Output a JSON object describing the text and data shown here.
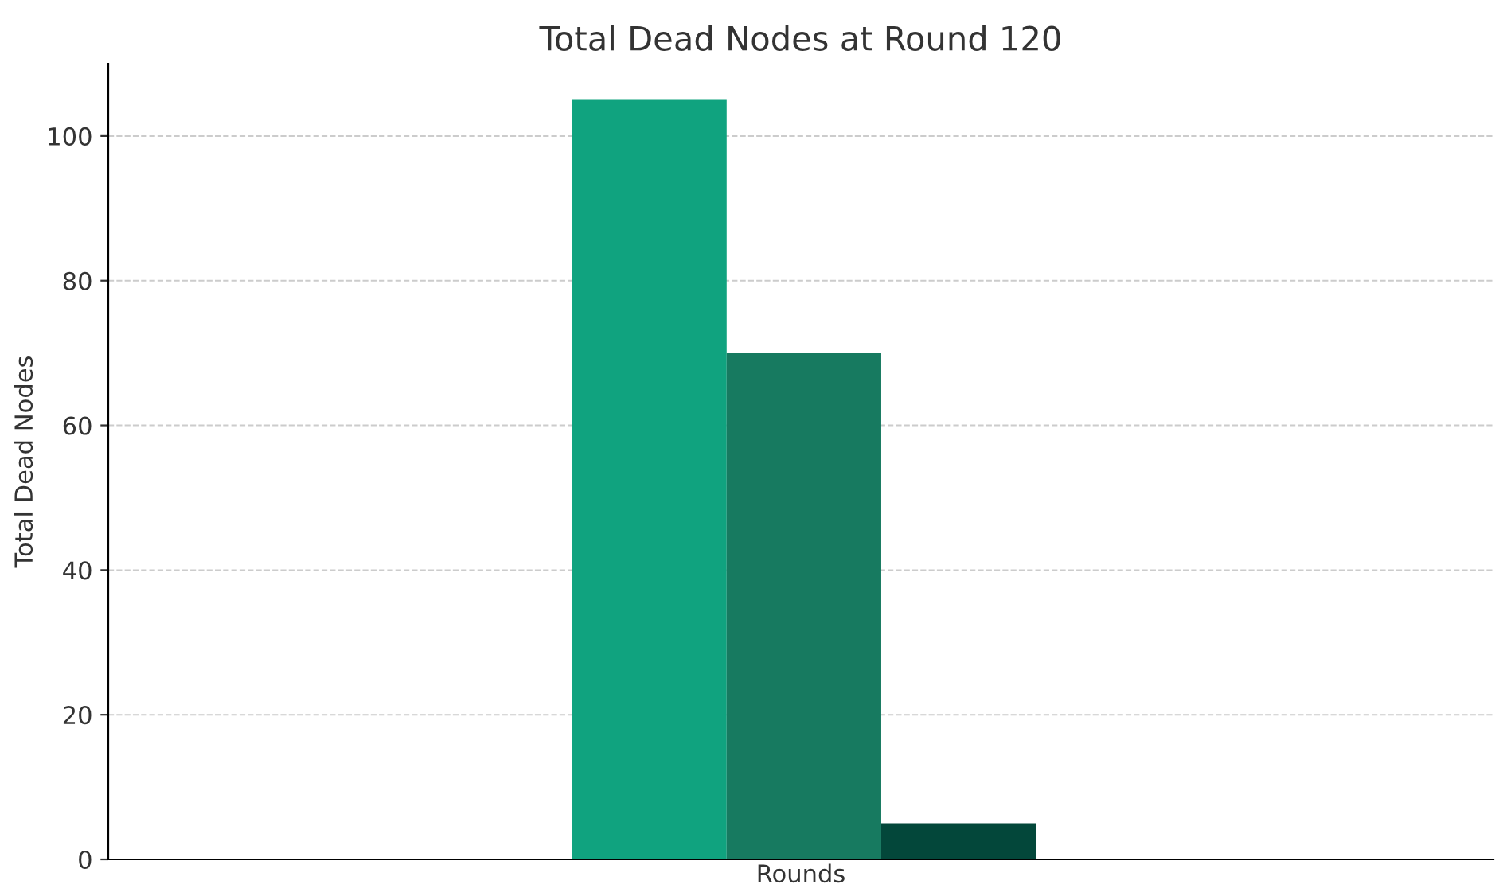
{
  "chart_data": {
    "type": "bar",
    "title": "Total Dead Nodes at Round 120",
    "xlabel": "Rounds",
    "ylabel": "Total Dead Nodes",
    "categories": [
      null
    ],
    "series": [
      {
        "color": "#10a37f",
        "values": [
          105
        ]
      },
      {
        "color": "#177a60",
        "values": [
          70
        ]
      },
      {
        "color": "#03473a",
        "values": [
          5
        ]
      }
    ],
    "ylim": [
      0,
      110
    ],
    "yticks": [
      0,
      20,
      40,
      60,
      80,
      100
    ],
    "grid": "y",
    "tick_labels": "y"
  }
}
